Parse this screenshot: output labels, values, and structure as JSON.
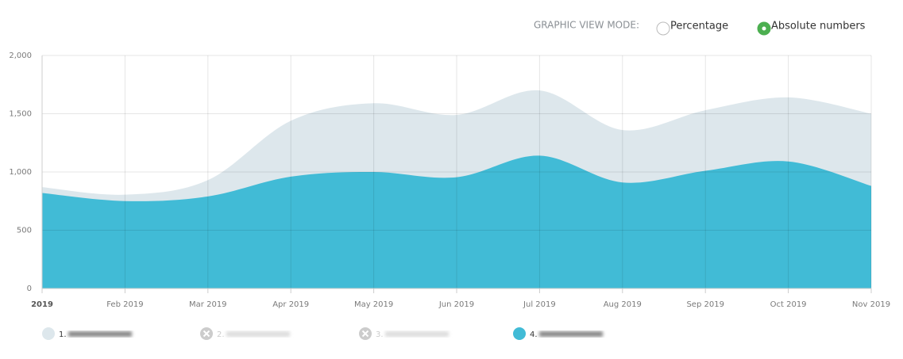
{
  "controls": {
    "label": "GRAPHIC VIEW MODE:",
    "options": [
      "Percentage",
      "Absolute numbers"
    ],
    "selected": 1
  },
  "chart_data": {
    "type": "area",
    "categories": [
      "2019",
      "Feb 2019",
      "Mar 2019",
      "Apr 2019",
      "May 2019",
      "Jun 2019",
      "Jul 2019",
      "Aug 2019",
      "Sep 2019",
      "Oct 2019",
      "Nov 2019"
    ],
    "series": [
      {
        "name": "1.",
        "color": "#dde7ec",
        "values": [
          870,
          805,
          930,
          1440,
          1590,
          1490,
          1700,
          1360,
          1530,
          1640,
          1500
        ]
      },
      {
        "name": "4.",
        "color": "#41bbd6",
        "values": [
          820,
          750,
          790,
          960,
          1000,
          955,
          1140,
          910,
          1010,
          1090,
          880
        ]
      }
    ],
    "hidden_series": [
      {
        "name": "2."
      },
      {
        "name": "3."
      }
    ],
    "ylim": [
      0,
      2000
    ],
    "yticks": [
      0,
      500,
      {
        "value": 1000,
        "label": "1,000"
      },
      {
        "value": 1500,
        "label": "1,500"
      },
      {
        "value": 2000,
        "label": "2,000"
      }
    ],
    "grid": true
  }
}
